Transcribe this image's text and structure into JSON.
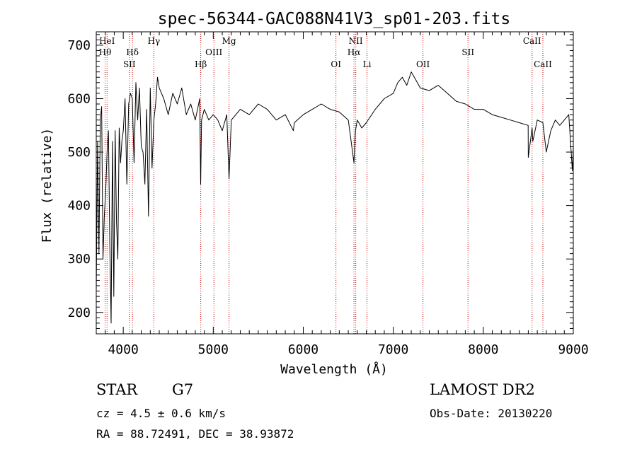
{
  "chart_data": {
    "type": "line",
    "title": "spec-56344-GAC088N41V3_sp01-203.fits",
    "xlabel": "Wavelength (Å)",
    "ylabel": "Flux (relative)",
    "xlim": [
      3700,
      9000
    ],
    "ylim": [
      160,
      725
    ],
    "xticks": [
      4000,
      5000,
      6000,
      7000,
      8000,
      9000
    ],
    "yticks": [
      200,
      300,
      400,
      500,
      600,
      700
    ],
    "grid": false,
    "legend": "none",
    "series": [
      {
        "color": "#000000",
        "x": [
          3700,
          3715,
          3730,
          3745,
          3760,
          3775,
          3790,
          3805,
          3820,
          3835,
          3850,
          3865,
          3880,
          3895,
          3910,
          3925,
          3940,
          3955,
          3970,
          3985,
          4000,
          4020,
          4040,
          4060,
          4080,
          4100,
          4120,
          4140,
          4160,
          4180,
          4200,
          4220,
          4240,
          4260,
          4280,
          4300,
          4320,
          4340,
          4360,
          4380,
          4400,
          4450,
          4500,
          4550,
          4600,
          4650,
          4700,
          4750,
          4800,
          4850,
          4860,
          4870,
          4900,
          4950,
          5000,
          5050,
          5100,
          5150,
          5175,
          5200,
          5300,
          5400,
          5500,
          5600,
          5700,
          5800,
          5890,
          5900,
          6000,
          6100,
          6200,
          6300,
          6400,
          6500,
          6563,
          6580,
          6600,
          6650,
          6700,
          6800,
          6900,
          7000,
          7050,
          7100,
          7150,
          7200,
          7250,
          7300,
          7400,
          7500,
          7600,
          7700,
          7800,
          7900,
          8000,
          8100,
          8200,
          8300,
          8400,
          8498,
          8500,
          8542,
          8550,
          8600,
          8662,
          8700,
          8750,
          8800,
          8850,
          8900,
          8950,
          8990,
          9000
        ],
        "y": [
          240,
          520,
          310,
          560,
          585,
          300,
          380,
          430,
          500,
          540,
          330,
          180,
          520,
          230,
          540,
          370,
          300,
          545,
          480,
          520,
          540,
          600,
          440,
          590,
          610,
          600,
          480,
          630,
          560,
          620,
          510,
          500,
          440,
          580,
          380,
          620,
          470,
          560,
          590,
          640,
          620,
          600,
          570,
          610,
          590,
          620,
          570,
          590,
          560,
          600,
          440,
          560,
          580,
          560,
          570,
          560,
          540,
          570,
          450,
          560,
          580,
          570,
          590,
          580,
          560,
          570,
          540,
          555,
          570,
          580,
          590,
          580,
          575,
          560,
          480,
          540,
          560,
          545,
          555,
          580,
          600,
          610,
          630,
          640,
          625,
          650,
          635,
          620,
          615,
          625,
          610,
          595,
          590,
          580,
          580,
          570,
          565,
          560,
          555,
          550,
          490,
          545,
          520,
          560,
          555,
          500,
          540,
          560,
          550,
          560,
          570,
          465,
          510
        ]
      }
    ],
    "spectral_lines": [
      {
        "label": "Hθ",
        "x": 3798,
        "row": 2
      },
      {
        "label": "HeI",
        "x": 3820,
        "row": 1
      },
      {
        "label": "Hδ",
        "x": 4102,
        "row": 2
      },
      {
        "label": "SII",
        "x": 4068,
        "row": 3
      },
      {
        "label": "Hγ",
        "x": 4340,
        "row": 1
      },
      {
        "label": "Hβ",
        "x": 4861,
        "row": 3
      },
      {
        "label": "OIII",
        "x": 5007,
        "row": 2
      },
      {
        "label": "Mg",
        "x": 5175,
        "row": 1
      },
      {
        "label": "OI",
        "x": 6363,
        "row": 3
      },
      {
        "label": "NII",
        "x": 6583,
        "row": 1
      },
      {
        "label": "Hα",
        "x": 6563,
        "row": 2
      },
      {
        "label": "Li",
        "x": 6708,
        "row": 3
      },
      {
        "label": "OII",
        "x": 7330,
        "row": 3
      },
      {
        "label": "SII",
        "x": 7830,
        "row": 2
      },
      {
        "label": "CaII",
        "x": 8542,
        "row": 1
      },
      {
        "label": "CaII",
        "x": 8662,
        "row": 3
      }
    ],
    "line_marker_color": "#cc0000"
  },
  "info": {
    "object_class": "STAR",
    "subclass": "G7",
    "survey": "LAMOST DR2",
    "redshift": "cz = 4.5 ± 0.6 km/s",
    "obs_date": "Obs-Date: 20130220",
    "coords": "RA =  88.72491, DEC =  38.93872"
  }
}
